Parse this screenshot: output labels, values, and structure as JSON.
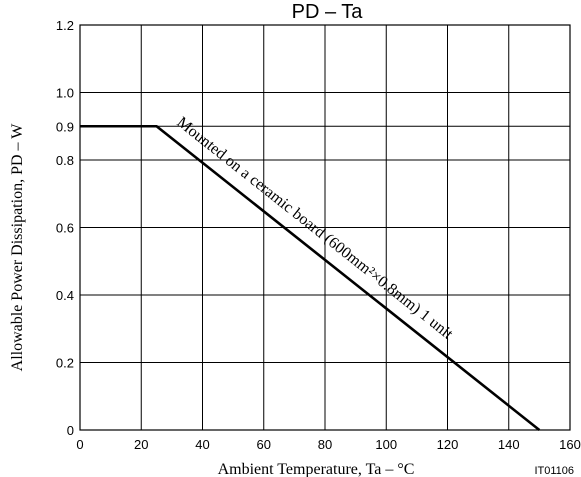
{
  "chart_data": {
    "type": "line",
    "title": "PD – Ta",
    "xlabel": "Ambient Temperature, Ta  –  °C",
    "ylabel": "Allowable Power Dissipation, PD  –  W",
    "xlim": [
      0,
      160
    ],
    "ylim": [
      0,
      1.2
    ],
    "xticks": [
      0,
      20,
      40,
      60,
      80,
      100,
      120,
      140,
      160
    ],
    "yticks": [
      0,
      0.2,
      0.4,
      0.6,
      0.8,
      0.9,
      1.0,
      1.2
    ],
    "xtick_labels": [
      "0",
      "20",
      "40",
      "60",
      "80",
      "100",
      "120",
      "140",
      "160"
    ],
    "ytick_labels": [
      "0",
      "0.2",
      "0.4",
      "0.6",
      "0.8",
      "0.9",
      "1.0",
      "1.2"
    ],
    "grid": true,
    "series": [
      {
        "x": [
          0,
          25,
          150
        ],
        "y": [
          0.9,
          0.9,
          0
        ]
      }
    ],
    "annotation": "Mounted on a ceramic board (600mm²×0.8mm) 1 unit",
    "figure_code": "IT01106",
    "line_color": "#000000"
  }
}
